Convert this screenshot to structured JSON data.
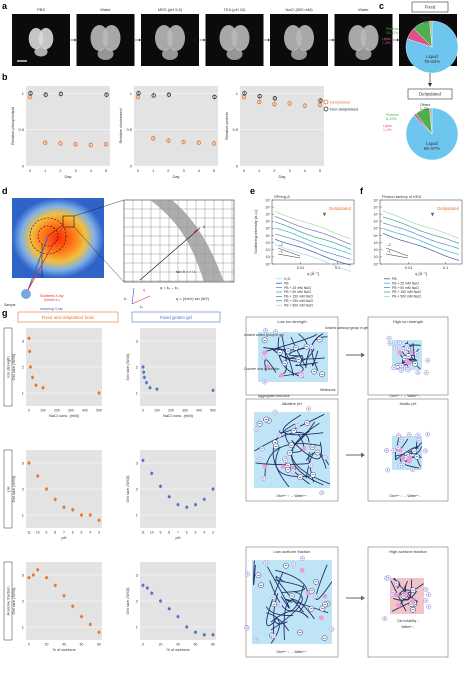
{
  "panels": {
    "a": "a",
    "b": "b",
    "c": "c",
    "d": "d",
    "e": "e",
    "f": "f",
    "g": "g"
  },
  "panel_a": {
    "conditions": [
      "PBS",
      "Water",
      "MES (pH 5.5)",
      "TEA (pH 10)",
      "NaCl (500 mM)",
      "Water",
      "Acetone (80%)"
    ]
  },
  "panel_b": {
    "legend": [
      "Delipidated",
      "Non-delipidated"
    ],
    "xlabel": "Day",
    "charts": [
      {
        "ylabel": "Relative phospholipid",
        "chart_data": {
          "type": "scatter",
          "x": [
            0,
            1,
            2,
            3,
            4,
            5
          ],
          "series": [
            {
              "name": "Delipidated",
              "values": [
                0.95,
                0.32,
                0.31,
                0.3,
                0.29,
                0.3
              ]
            },
            {
              "name": "Non-delipidated",
              "values": [
                1.0,
                0.98,
                0.99,
                null,
                null,
                0.98
              ]
            }
          ],
          "ylim": [
            0,
            1.1
          ]
        }
      },
      {
        "ylabel": "Relative cholesterol",
        "chart_data": {
          "type": "scatter",
          "x": [
            0,
            1,
            2,
            3,
            4,
            5
          ],
          "series": [
            {
              "name": "Delipidated",
              "values": [
                0.95,
                0.38,
                0.35,
                0.33,
                0.32,
                0.31
              ]
            },
            {
              "name": "Non-delipidated",
              "values": [
                1.0,
                0.97,
                0.98,
                null,
                null,
                0.95
              ]
            }
          ],
          "ylim": [
            0,
            1.1
          ]
        }
      },
      {
        "ylabel": "Relative protein",
        "chart_data": {
          "type": "scatter",
          "x": [
            0,
            1,
            2,
            3,
            4,
            5
          ],
          "series": [
            {
              "name": "Delipidated",
              "values": [
                0.95,
                0.88,
                0.85,
                0.86,
                0.83,
                0.84
              ]
            },
            {
              "name": "Non-delipidated",
              "values": [
                1.0,
                0.96,
                0.93,
                null,
                null,
                0.9
              ]
            }
          ],
          "ylim": [
            0,
            1.1
          ]
        }
      }
    ],
    "yticks": [
      "0",
      "0.5",
      "1"
    ],
    "xticks": [
      "0",
      "1",
      "2",
      "3",
      "4",
      "5"
    ]
  },
  "panel_c": {
    "fixed_label": "Fixed",
    "delipidated_label": "Delipidated",
    "fixed": {
      "chart_data": {
        "type": "pie",
        "slices": [
          {
            "name": "Liquid",
            "range": "79–82%",
            "value": 80.5
          },
          {
            "name": "Lipids",
            "range": "7–8%",
            "value": 7.5
          },
          {
            "name": "Proteins",
            "range": "10–12%",
            "value": 11
          },
          {
            "name": "Others",
            "range": "1–2%",
            "value": 1.5
          }
        ]
      }
    },
    "delipidated": {
      "chart_data": {
        "type": "pie",
        "slices": [
          {
            "name": "Liquid",
            "range": "86–87%",
            "value": 86.5
          },
          {
            "name": "Lipids",
            "range": "1–2%",
            "value": 1.5
          },
          {
            "name": "Proteins",
            "range": "8–10%",
            "value": 9
          },
          {
            "name": "Others",
            "range": "1–2%",
            "value": 1.5
          }
        ]
      }
    }
  },
  "panel_d": {
    "sample": "Sample",
    "incoming": "Incoming X-ray",
    "incoming_vec": "(Vector k₀)",
    "scattered": "Scattered X-ray",
    "scattered_vec": "(Vector kₛ)",
    "r": "r",
    "L": "L",
    "eq1": "q = kₛ – k₀",
    "eq2": "tan θ = r / L",
    "eq3": "q = (4π/λ) sin (θ/2)",
    "q": "q",
    "ks": "kₛ",
    "k0": "k₀",
    "theta": "θ"
  },
  "panel_e": {
    "title": "SPring-8",
    "tag": "Delipidated",
    "ylabel": "Scattering intensity [a.u.]",
    "xlabel": "q [Å⁻¹]",
    "xticks": [
      "0.01",
      "0.1"
    ],
    "yticks": [
      "10⁰",
      "10¹",
      "10²",
      "10³",
      "10⁴",
      "10⁵",
      "10⁶",
      "10⁷",
      "10⁸",
      "10⁹"
    ],
    "slope1": "–2",
    "slope2": "–1",
    "legend": [
      "H₂O",
      "PB",
      "PB + 25 mM NaCl",
      "PB + 50 mM NaCl",
      "PB + 150 mM NaCl",
      "PB + 250 mM NaCl",
      "PB + 500 mM NaCl"
    ],
    "colors": [
      "#9fd8f0",
      "#3f5aa8",
      "#5c8ad0",
      "#2fb7c8",
      "#3fa58a",
      "#7b6fbf",
      "#a7d9a0"
    ]
  },
  "panel_f": {
    "title": "Photon factory of KEK",
    "tag": "Delipidated",
    "xlabel": "q [Å⁻¹]",
    "xticks": [
      "0.01",
      "0.1"
    ],
    "yticks": [
      "10⁰",
      "10¹",
      "10²",
      "10³",
      "10⁴",
      "10⁵",
      "10⁶",
      "10⁷",
      "10⁸",
      "10⁹"
    ],
    "slope1": "–2",
    "slope2": "–1",
    "legend": [
      "PB",
      "PB + 25 mM NaCl",
      "PB + 50 mM NaCl",
      "PB + 150 mM NaCl",
      "PB + 500 mM NaCl"
    ],
    "colors": [
      "#3f5aa8",
      "#2fb7c8",
      "#5c8ad0",
      "#3fa58a",
      "#a7d9a0"
    ]
  },
  "panel_g": {
    "col1": "Fixed and delipidated brain",
    "col2": "Fixed gelatin gel",
    "rows": [
      "Ion strength",
      "pH",
      "Acetone fraction"
    ],
    "ylabel": "Gel size (S/S0)",
    "ion": {
      "xlabel": "NaCl conc. (mM)",
      "xticks": [
        "0",
        "100",
        "200",
        "300",
        "400",
        "500"
      ],
      "brain": {
        "chart_data": {
          "type": "scatter",
          "x": [
            0,
            5,
            10,
            25,
            50,
            100,
            500
          ],
          "values": [
            3.1,
            2.6,
            2.0,
            1.6,
            1.3,
            1.2,
            1.0
          ],
          "ylim": [
            0.5,
            3.5
          ]
        }
      },
      "gel": {
        "chart_data": {
          "type": "scatter",
          "x": [
            0,
            5,
            10,
            25,
            50,
            100,
            500
          ],
          "values": [
            2.0,
            1.8,
            1.6,
            1.4,
            1.2,
            1.15,
            1.1
          ],
          "ylim": [
            0.5,
            3.5
          ]
        }
      }
    },
    "ph": {
      "xlabel": "pH",
      "xticks": [
        "11",
        "10",
        "9",
        "8",
        "7",
        "6",
        "5",
        "4",
        "3"
      ],
      "brain": {
        "chart_data": {
          "type": "scatter",
          "x": [
            11,
            10,
            9,
            8,
            7,
            6,
            5,
            4,
            3
          ],
          "values": [
            3.0,
            2.5,
            2.0,
            1.6,
            1.3,
            1.2,
            1.0,
            1.0,
            0.8
          ],
          "ylim": [
            0.5,
            3.5
          ]
        }
      },
      "gel": {
        "chart_data": {
          "type": "scatter",
          "x": [
            11,
            10,
            9,
            8,
            7,
            6,
            5,
            4,
            3
          ],
          "values": [
            3.1,
            2.6,
            2.1,
            1.7,
            1.4,
            1.3,
            1.4,
            1.6,
            2.0
          ],
          "ylim": [
            0.5,
            3.5
          ]
        }
      }
    },
    "acetone": {
      "xlabel": "% of acetone",
      "xticks": [
        "0",
        "20",
        "40",
        "60",
        "80"
      ],
      "brain": {
        "chart_data": {
          "type": "scatter",
          "x": [
            0,
            5,
            10,
            20,
            30,
            40,
            50,
            60,
            70,
            80
          ],
          "values": [
            2.9,
            3.0,
            3.2,
            2.9,
            2.6,
            2.2,
            1.8,
            1.4,
            1.1,
            0.8
          ],
          "ylim": [
            0.5,
            3.5
          ]
        }
      },
      "gel": {
        "chart_data": {
          "type": "scatter",
          "x": [
            0,
            5,
            10,
            20,
            30,
            40,
            50,
            60,
            70,
            80
          ],
          "values": [
            2.6,
            2.5,
            2.3,
            2.0,
            1.7,
            1.4,
            1.0,
            0.8,
            0.7,
            0.7
          ],
          "ylim": [
            0.5,
            3.5
          ]
        }
      }
    },
    "yticks": [
      "1",
      "2",
      "3"
    ]
  },
  "schematic": {
    "low_ion": "Low ion strength",
    "high_ion": "High ion strength",
    "ionized_carboxyl": "Ionized carboxyl group in gel",
    "ionized_amino": "Ionized amino group in gel",
    "counter_ions": "Counter ions in solution",
    "aggregated": "Aggregated structure",
    "meshwork": "Meshwork",
    "alkaline": "Alkaline pH",
    "acidic": "Acidic pH",
    "low_acetone": "Low acetone fraction",
    "high_acetone": "High acetone fraction",
    "eq_ion_low": "Osmᴵᵒⁿ ↑ → Waterᴵⁿ ↑",
    "eq_ion_high": "Osmᴵᵒⁿ ↓ → Waterᴵⁿ ↓",
    "eq_alk": "Osmᴵᵒⁿ ↑ → Waterᴵⁿ ↑",
    "eq_acid": "Osmᴵᵒⁿ ↓ → Waterᴵⁿ ↓",
    "eq_low_ac": "Osmᴵᵒⁿ ↓ → Waterᴵⁿ ↑",
    "eq_high_ac1": "Gel solubility ↓",
    "eq_high_ac2": "Waterᴵⁿ ↓"
  }
}
